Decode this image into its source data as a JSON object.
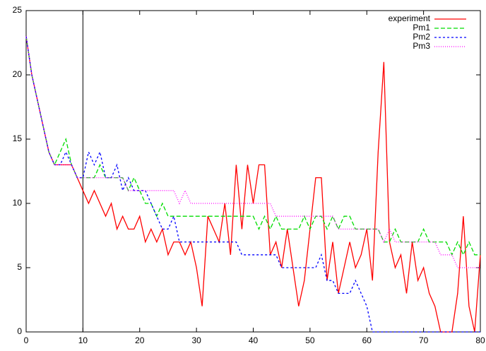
{
  "chart_data": {
    "type": "line",
    "x": [
      0,
      1,
      2,
      3,
      4,
      5,
      6,
      7,
      8,
      9,
      10,
      11,
      12,
      13,
      14,
      15,
      16,
      17,
      18,
      19,
      20,
      21,
      22,
      23,
      24,
      25,
      26,
      27,
      28,
      29,
      30,
      31,
      32,
      33,
      34,
      35,
      36,
      37,
      38,
      39,
      40,
      41,
      42,
      43,
      44,
      45,
      46,
      47,
      48,
      49,
      50,
      51,
      52,
      53,
      54,
      55,
      56,
      57,
      58,
      59,
      60,
      61,
      62,
      63,
      64,
      65,
      66,
      67,
      68,
      69,
      70,
      71,
      72,
      73,
      74,
      75,
      76,
      77,
      78,
      79,
      80
    ],
    "series": [
      {
        "name": "experiment",
        "color": "#ff0000",
        "dash": "none",
        "values": [
          23,
          20,
          18,
          16,
          14,
          13,
          13,
          13,
          13,
          12,
          11,
          10,
          11,
          10,
          9,
          10,
          8,
          9,
          8,
          8,
          9,
          7,
          8,
          7,
          8,
          6,
          7,
          7,
          6,
          7,
          5,
          2,
          9,
          8,
          7,
          10,
          6,
          13,
          8,
          13,
          10,
          13,
          13,
          6,
          7,
          5,
          8,
          5,
          2,
          4,
          8,
          12,
          12,
          4,
          7,
          3,
          5,
          7,
          5,
          6,
          8,
          4,
          14,
          21,
          7,
          5,
          6,
          3,
          7,
          4,
          5,
          3,
          2,
          0,
          0,
          0,
          3,
          9,
          2,
          0,
          6
        ]
      },
      {
        "name": "Pm1",
        "color": "#00dd00",
        "dash": "6 3",
        "values": [
          23,
          20,
          18,
          16,
          14,
          13,
          14,
          15,
          13,
          12,
          12,
          12,
          12,
          13,
          12,
          12,
          12,
          12,
          11,
          12,
          11,
          10,
          10,
          9,
          10,
          9,
          9,
          9,
          9,
          9,
          9,
          9,
          9,
          9,
          9,
          9,
          9,
          9,
          9,
          9,
          9,
          8,
          9,
          8,
          9,
          8,
          8,
          8,
          8,
          9,
          8,
          9,
          9,
          8,
          9,
          8,
          9,
          9,
          8,
          8,
          8,
          8,
          8,
          7,
          7,
          8,
          7,
          7,
          7,
          7,
          8,
          7,
          7,
          7,
          7,
          6,
          7,
          6,
          7,
          6,
          6
        ]
      },
      {
        "name": "Pm2",
        "color": "#0000ff",
        "dash": "3 3",
        "values": [
          23,
          20,
          18,
          16,
          14,
          13,
          13,
          14,
          13,
          12,
          12,
          14,
          13,
          14,
          12,
          12,
          13,
          11,
          12,
          11,
          11,
          11,
          10,
          9,
          8,
          8,
          9,
          7,
          7,
          7,
          7,
          7,
          7,
          7,
          7,
          7,
          7,
          7,
          6,
          6,
          6,
          6,
          6,
          6,
          6,
          5,
          5,
          5,
          5,
          5,
          5,
          5,
          6,
          4,
          4,
          3,
          3,
          3,
          4,
          3,
          2,
          0,
          0,
          0,
          0,
          0,
          0,
          0,
          0,
          0,
          0,
          0,
          0,
          0,
          0,
          0,
          0,
          0,
          0,
          0,
          0
        ]
      },
      {
        "name": "Pm3",
        "color": "#ff00ff",
        "dash": "1 2",
        "values": [
          23,
          20,
          18,
          16,
          14,
          13,
          13,
          13,
          13,
          12,
          12,
          12,
          12,
          12,
          12,
          12,
          12,
          12,
          11,
          11,
          11,
          11,
          11,
          11,
          11,
          11,
          11,
          10,
          11,
          10,
          10,
          10,
          10,
          10,
          10,
          10,
          10,
          10,
          10,
          10,
          10,
          10,
          10,
          10,
          9,
          9,
          9,
          9,
          9,
          9,
          9,
          9,
          9,
          9,
          9,
          8,
          8,
          8,
          8,
          8,
          8,
          8,
          8,
          7,
          8,
          7,
          7,
          7,
          7,
          7,
          7,
          7,
          7,
          6,
          6,
          6,
          5,
          5,
          5,
          5,
          5
        ]
      }
    ],
    "xlim": [
      0,
      80
    ],
    "xticks": [
      0,
      10,
      20,
      30,
      40,
      50,
      60,
      70,
      80
    ],
    "ylim": [
      0,
      25
    ],
    "yticks": [
      0,
      5,
      10,
      15,
      20,
      25
    ],
    "vline_x": 10,
    "legend": "top-right",
    "grid": false
  }
}
